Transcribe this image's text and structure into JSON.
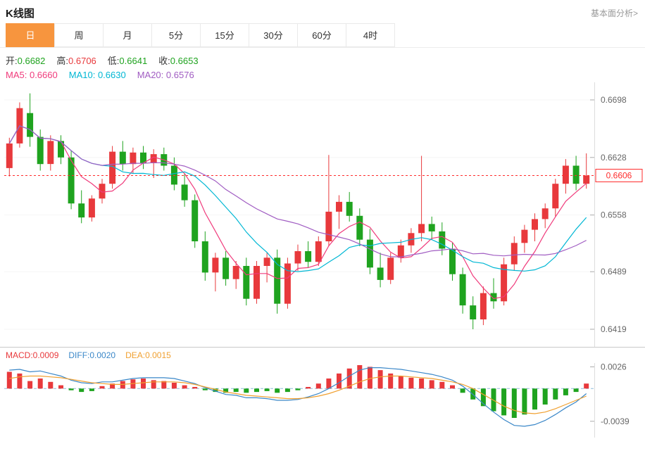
{
  "header": {
    "title": "K线图",
    "link_label": "基本面分析>"
  },
  "tabs": {
    "active_index": 0,
    "items": [
      {
        "key": "day",
        "label": "日"
      },
      {
        "key": "week",
        "label": "周"
      },
      {
        "key": "month",
        "label": "月"
      },
      {
        "key": "5min",
        "label": "5分"
      },
      {
        "key": "15min",
        "label": "15分"
      },
      {
        "key": "30min",
        "label": "30分"
      },
      {
        "key": "60min",
        "label": "60分"
      },
      {
        "key": "4hour",
        "label": "4时"
      }
    ]
  },
  "info": {
    "open_label": "开:",
    "open_value": "0.6682",
    "high_label": "高:",
    "high_value": "0.6706",
    "low_label": "低:",
    "low_value": "0.6641",
    "close_label": "收:",
    "close_value": "0.6653",
    "ma5_label": "MA5:",
    "ma5_value": "0.6660",
    "ma10_label": "MA10:",
    "ma10_value": "0.6630",
    "ma20_label": "MA20:",
    "ma20_value": "0.6576"
  },
  "macd_info": {
    "macd_label": "MACD:",
    "macd_value": "0.0009",
    "diff_label": "DIFF:",
    "diff_value": "0.0020",
    "dea_label": "DEA:",
    "dea_value": "0.0015"
  },
  "colors": {
    "up": "#e8393c",
    "down": "#1fa31f",
    "ma5": "#f03b7c",
    "ma10": "#00b7d4",
    "ma20": "#a05cc2",
    "diff": "#3a87c8",
    "dea": "#f0a030",
    "accent": "#f7953e",
    "price_line": "#ff2d2d"
  },
  "chart_data": {
    "type": "candlestick",
    "title": "K线图",
    "interval": "日",
    "y_ticks": [
      0.6698,
      0.6628,
      0.6558,
      0.6489,
      0.6419
    ],
    "price_range": [
      0.6401,
      0.6716
    ],
    "current_price": 0.6606,
    "hovered_candle": {
      "open": 0.6682,
      "high": 0.6706,
      "low": 0.6641,
      "close": 0.6653
    },
    "ohlc": [
      [
        0.6615,
        0.6652,
        0.6605,
        0.6645
      ],
      [
        0.6645,
        0.6695,
        0.664,
        0.6688
      ],
      [
        0.6682,
        0.6706,
        0.6641,
        0.6653
      ],
      [
        0.6653,
        0.6662,
        0.6612,
        0.662
      ],
      [
        0.662,
        0.6655,
        0.6612,
        0.6648
      ],
      [
        0.6648,
        0.6655,
        0.662,
        0.6628
      ],
      [
        0.6628,
        0.6636,
        0.6565,
        0.6572
      ],
      [
        0.6572,
        0.6588,
        0.6548,
        0.6555
      ],
      [
        0.6555,
        0.6582,
        0.655,
        0.6578
      ],
      [
        0.6578,
        0.6602,
        0.6572,
        0.6596
      ],
      [
        0.6596,
        0.6642,
        0.659,
        0.6635
      ],
      [
        0.6635,
        0.6648,
        0.6612,
        0.662
      ],
      [
        0.662,
        0.664,
        0.6608,
        0.6634
      ],
      [
        0.6634,
        0.6642,
        0.6614,
        0.6621
      ],
      [
        0.6621,
        0.6638,
        0.6603,
        0.6632
      ],
      [
        0.6632,
        0.664,
        0.6612,
        0.6618
      ],
      [
        0.6618,
        0.6628,
        0.6588,
        0.6595
      ],
      [
        0.6595,
        0.6608,
        0.6568,
        0.6576
      ],
      [
        0.6576,
        0.6583,
        0.6518,
        0.6526
      ],
      [
        0.6526,
        0.6538,
        0.6478,
        0.6488
      ],
      [
        0.6488,
        0.6512,
        0.6465,
        0.6506
      ],
      [
        0.6506,
        0.6514,
        0.6472,
        0.648
      ],
      [
        0.648,
        0.6502,
        0.6468,
        0.6496
      ],
      [
        0.6496,
        0.6506,
        0.6448,
        0.6456
      ],
      [
        0.6456,
        0.6502,
        0.645,
        0.6496
      ],
      [
        0.6496,
        0.6512,
        0.6476,
        0.6506
      ],
      [
        0.6506,
        0.6516,
        0.6438,
        0.645
      ],
      [
        0.645,
        0.6506,
        0.6444,
        0.6499
      ],
      [
        0.6499,
        0.6522,
        0.649,
        0.6514
      ],
      [
        0.6514,
        0.6526,
        0.6494,
        0.6501
      ],
      [
        0.6501,
        0.6532,
        0.6496,
        0.6526
      ],
      [
        0.6526,
        0.6631,
        0.652,
        0.6562
      ],
      [
        0.6562,
        0.6582,
        0.6541,
        0.6574
      ],
      [
        0.6574,
        0.6586,
        0.655,
        0.6557
      ],
      [
        0.6557,
        0.6566,
        0.652,
        0.6528
      ],
      [
        0.6528,
        0.6541,
        0.6486,
        0.6494
      ],
      [
        0.6494,
        0.6512,
        0.647,
        0.6479
      ],
      [
        0.6479,
        0.6512,
        0.6474,
        0.6506
      ],
      [
        0.6506,
        0.6528,
        0.65,
        0.6521
      ],
      [
        0.6521,
        0.6542,
        0.6512,
        0.6536
      ],
      [
        0.6536,
        0.663,
        0.6526,
        0.6547
      ],
      [
        0.6547,
        0.6556,
        0.6528,
        0.6538
      ],
      [
        0.6538,
        0.6549,
        0.6509,
        0.6517
      ],
      [
        0.6517,
        0.6524,
        0.6478,
        0.6486
      ],
      [
        0.6486,
        0.6494,
        0.6438,
        0.6448
      ],
      [
        0.6448,
        0.6459,
        0.6419,
        0.6431
      ],
      [
        0.6431,
        0.6471,
        0.6424,
        0.6463
      ],
      [
        0.6463,
        0.6481,
        0.6444,
        0.6453
      ],
      [
        0.6453,
        0.6506,
        0.6448,
        0.6498
      ],
      [
        0.6498,
        0.6532,
        0.649,
        0.6524
      ],
      [
        0.6524,
        0.6546,
        0.6512,
        0.654
      ],
      [
        0.654,
        0.656,
        0.6526,
        0.6553
      ],
      [
        0.6553,
        0.6572,
        0.6542,
        0.6566
      ],
      [
        0.6566,
        0.6602,
        0.6556,
        0.6596
      ],
      [
        0.6596,
        0.6626,
        0.6584,
        0.6618
      ],
      [
        0.6618,
        0.663,
        0.6588,
        0.6596
      ],
      [
        0.6596,
        0.6633,
        0.659,
        0.6606
      ]
    ],
    "moving_averages": {
      "ma5_window": 5,
      "ma10_window": 10,
      "ma20_window": 20,
      "ma5_current": 0.666,
      "ma10_current": 0.663,
      "ma20_current": 0.6576
    },
    "macd": {
      "range": [
        -0.0056,
        0.0028
      ],
      "ticks": [
        0.0026,
        -0.0039
      ],
      "histogram": [
        0.002,
        0.0018,
        0.0009,
        0.0012,
        0.0008,
        0.0004,
        -0.0002,
        -0.0004,
        -0.0003,
        0.0003,
        0.0006,
        0.0009,
        0.0011,
        0.0012,
        0.001,
        0.0009,
        0.0007,
        0.0004,
        0.0002,
        -0.0002,
        -0.0004,
        -0.0005,
        -0.0004,
        -0.0005,
        -0.0004,
        -0.0003,
        -0.0005,
        -0.0004,
        -0.0002,
        0.0002,
        0.0006,
        0.0012,
        0.0018,
        0.0024,
        0.0028,
        0.0026,
        0.0022,
        0.0018,
        0.0015,
        0.0013,
        0.0012,
        0.001,
        0.0008,
        0.0004,
        -0.0005,
        -0.0013,
        -0.0021,
        -0.0027,
        -0.0032,
        -0.0035,
        -0.0031,
        -0.0025,
        -0.0019,
        -0.0013,
        -0.0008,
        -0.0004,
        0.0006
      ],
      "diff": [
        0.0022,
        0.0023,
        0.002,
        0.0021,
        0.0018,
        0.0015,
        0.001,
        0.0007,
        0.0006,
        0.0008,
        0.0008,
        0.001,
        0.0012,
        0.0013,
        0.0013,
        0.0013,
        0.0012,
        0.0009,
        0.0006,
        0.0001,
        -0.0003,
        -0.0007,
        -0.0008,
        -0.0011,
        -0.0011,
        -0.0012,
        -0.0014,
        -0.0014,
        -0.0013,
        -0.001,
        -0.0006,
        0.0,
        0.0007,
        0.0015,
        0.0022,
        0.0025,
        0.0025,
        0.0024,
        0.0023,
        0.0021,
        0.0019,
        0.0017,
        0.0014,
        0.001,
        0.0003,
        -0.0007,
        -0.0018,
        -0.0028,
        -0.0037,
        -0.0044,
        -0.0045,
        -0.0043,
        -0.0038,
        -0.0031,
        -0.0023,
        -0.0016,
        -0.0006
      ],
      "dea": [
        0.0012,
        0.0014,
        0.0015,
        0.0015,
        0.0014,
        0.0013,
        0.0011,
        0.0009,
        0.0007,
        0.0006,
        0.0005,
        0.0005,
        0.0006,
        0.0007,
        0.0008,
        0.0008,
        0.0008,
        0.0007,
        0.0005,
        0.0002,
        -0.0001,
        -0.0004,
        -0.0006,
        -0.0008,
        -0.0009,
        -0.001,
        -0.0011,
        -0.0012,
        -0.0012,
        -0.0011,
        -0.0009,
        -0.0006,
        -0.0002,
        0.0003,
        0.0008,
        0.0012,
        0.0014,
        0.0015,
        0.0015,
        0.0014,
        0.0013,
        0.0012,
        0.001,
        0.0008,
        0.0005,
        0.0,
        -0.0007,
        -0.0014,
        -0.0021,
        -0.0026,
        -0.0029,
        -0.003,
        -0.0028,
        -0.0024,
        -0.0019,
        -0.0014,
        -0.0009
      ]
    }
  }
}
